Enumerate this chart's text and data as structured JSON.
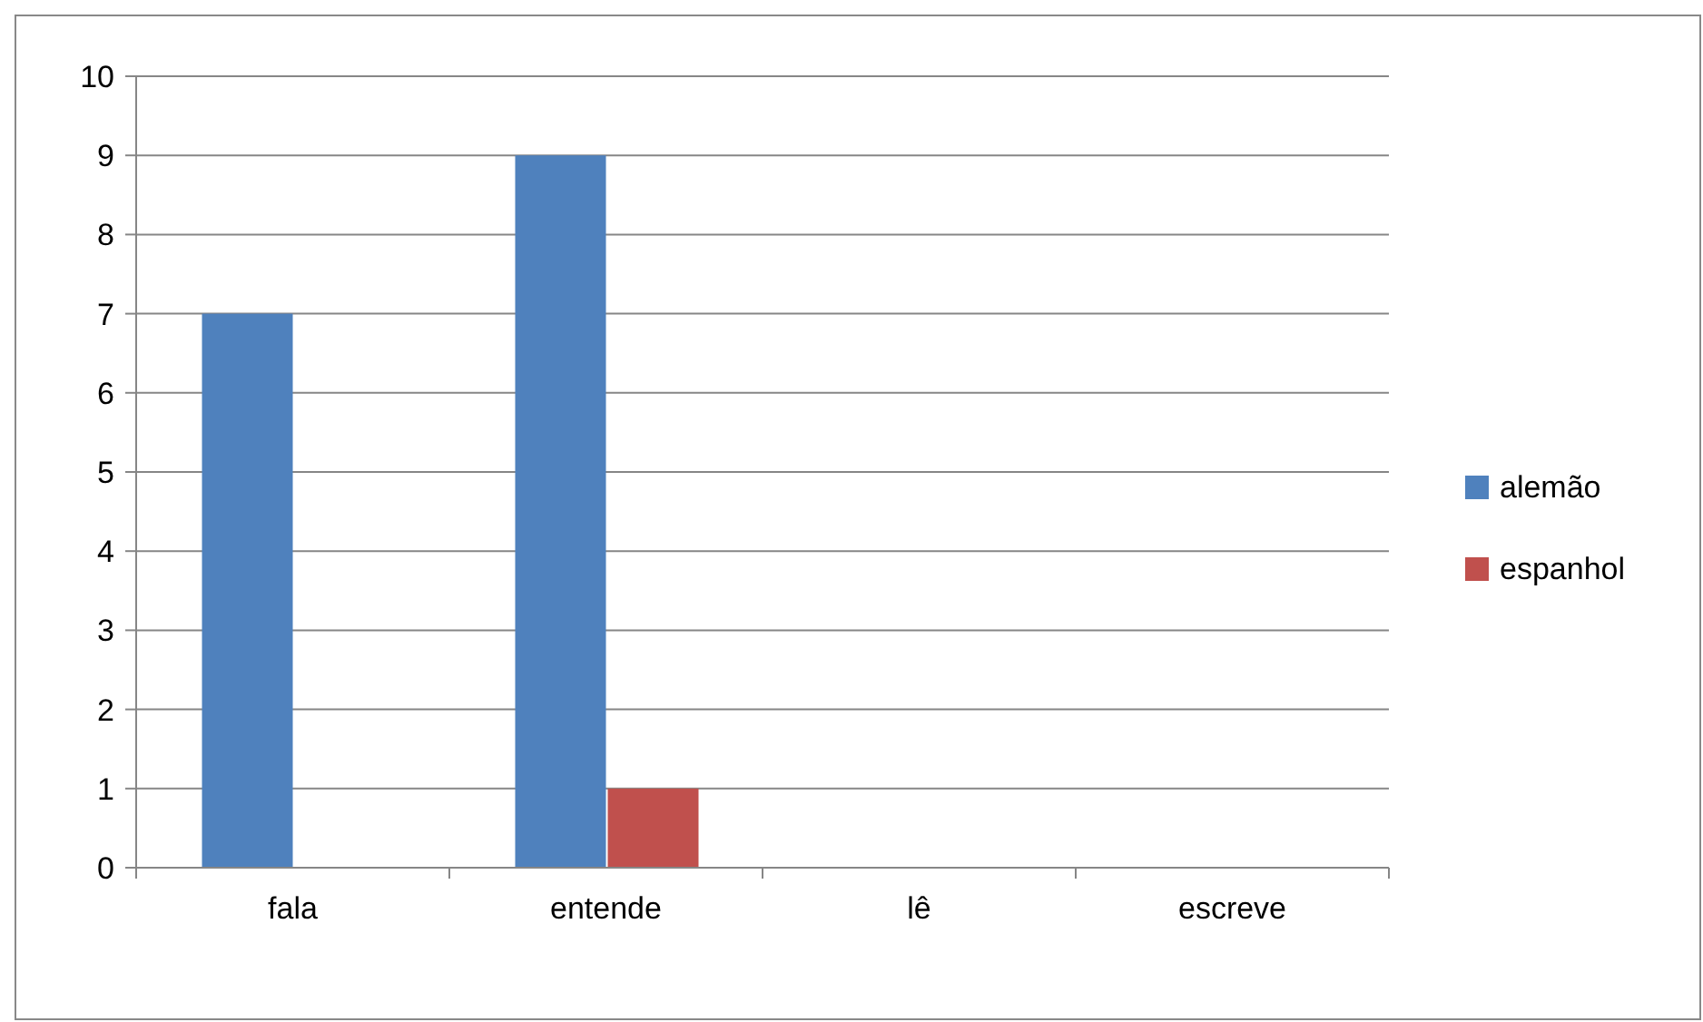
{
  "chart_data": {
    "type": "bar",
    "categories": [
      "fala",
      "entende",
      "lê",
      "escreve"
    ],
    "series": [
      {
        "name": "alemão",
        "color": "#4f81bd",
        "values": [
          7,
          9,
          0,
          0
        ]
      },
      {
        "name": "espanhol",
        "color": "#c0504d",
        "values": [
          0,
          1,
          0,
          0
        ]
      }
    ],
    "ylim": [
      0,
      10
    ],
    "yticks": [
      0,
      1,
      2,
      3,
      4,
      5,
      6,
      7,
      8,
      9,
      10
    ],
    "grid": "y",
    "legend": "right"
  }
}
